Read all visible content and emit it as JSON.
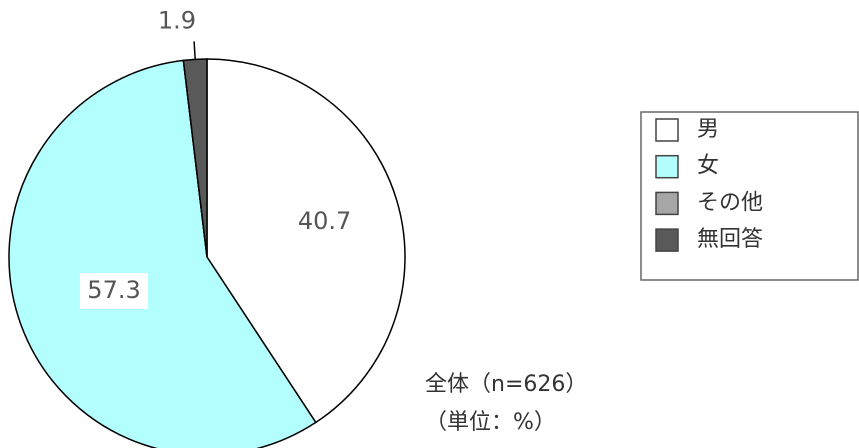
{
  "chart_data": {
    "type": "pie",
    "categories": [
      "男",
      "女",
      "その他",
      "無回答"
    ],
    "values": [
      40.7,
      57.3,
      0,
      1.9
    ],
    "colors": [
      "#ffffff",
      "#b3ffff",
      "#a6a6a6",
      "#595959"
    ],
    "legend": "right",
    "annotations": [
      "全体（n=626）",
      "（単位：%）"
    ]
  }
}
